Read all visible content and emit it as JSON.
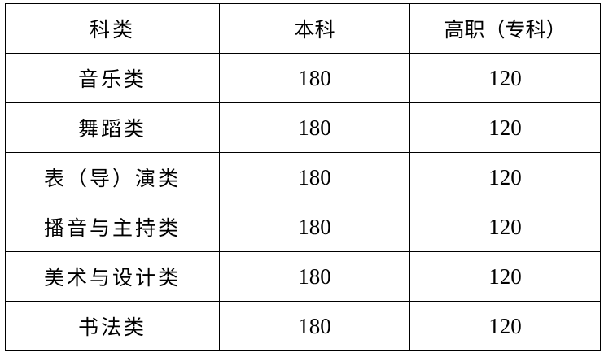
{
  "table": {
    "headers": [
      "科类",
      "本科",
      "高职（专科）"
    ],
    "rows": [
      [
        "音乐类",
        "180",
        "120"
      ],
      [
        "舞蹈类",
        "180",
        "120"
      ],
      [
        "表（导）演类",
        "180",
        "120"
      ],
      [
        "播音与主持类",
        "180",
        "120"
      ],
      [
        "美术与设计类",
        "180",
        "120"
      ],
      [
        "书法类",
        "180",
        "120"
      ]
    ]
  }
}
